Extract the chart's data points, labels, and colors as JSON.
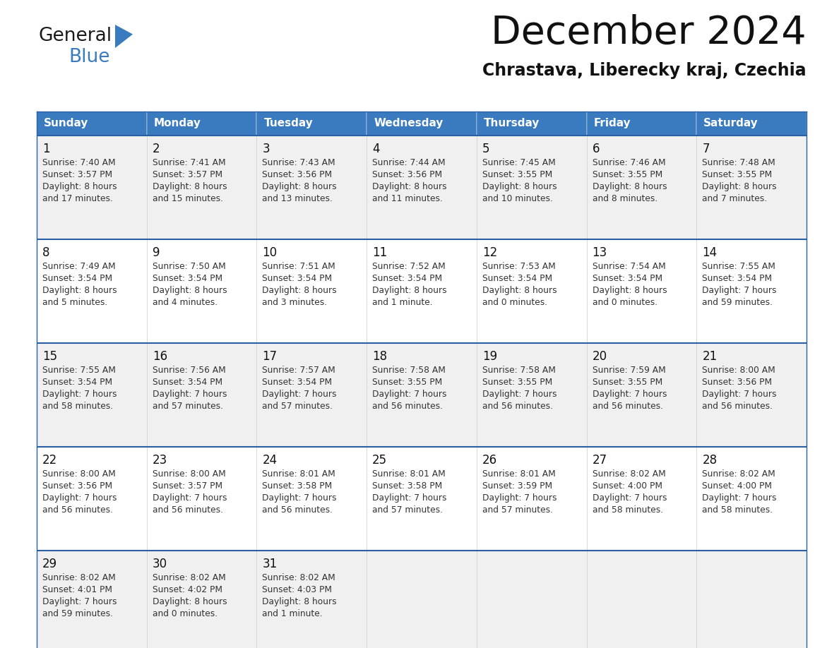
{
  "title": "December 2024",
  "subtitle": "Chrastava, Liberecky kraj, Czechia",
  "days_of_week": [
    "Sunday",
    "Monday",
    "Tuesday",
    "Wednesday",
    "Thursday",
    "Friday",
    "Saturday"
  ],
  "header_bg": "#3a7bbf",
  "header_text": "#ffffff",
  "cell_bg_even": "#f0f0f0",
  "cell_bg_odd": "#ffffff",
  "separator_color": "#2a5fa5",
  "text_color": "#333333",
  "day_num_color": "#111111",
  "calendar_data": [
    [
      {
        "day": 1,
        "sunrise": "7:40 AM",
        "sunset": "3:57 PM",
        "daylight_h": "8 hours",
        "daylight_m": "17 minutes"
      },
      {
        "day": 2,
        "sunrise": "7:41 AM",
        "sunset": "3:57 PM",
        "daylight_h": "8 hours",
        "daylight_m": "15 minutes"
      },
      {
        "day": 3,
        "sunrise": "7:43 AM",
        "sunset": "3:56 PM",
        "daylight_h": "8 hours",
        "daylight_m": "13 minutes"
      },
      {
        "day": 4,
        "sunrise": "7:44 AM",
        "sunset": "3:56 PM",
        "daylight_h": "8 hours",
        "daylight_m": "11 minutes"
      },
      {
        "day": 5,
        "sunrise": "7:45 AM",
        "sunset": "3:55 PM",
        "daylight_h": "8 hours",
        "daylight_m": "10 minutes"
      },
      {
        "day": 6,
        "sunrise": "7:46 AM",
        "sunset": "3:55 PM",
        "daylight_h": "8 hours",
        "daylight_m": "8 minutes"
      },
      {
        "day": 7,
        "sunrise": "7:48 AM",
        "sunset": "3:55 PM",
        "daylight_h": "8 hours",
        "daylight_m": "7 minutes"
      }
    ],
    [
      {
        "day": 8,
        "sunrise": "7:49 AM",
        "sunset": "3:54 PM",
        "daylight_h": "8 hours",
        "daylight_m": "5 minutes"
      },
      {
        "day": 9,
        "sunrise": "7:50 AM",
        "sunset": "3:54 PM",
        "daylight_h": "8 hours",
        "daylight_m": "4 minutes"
      },
      {
        "day": 10,
        "sunrise": "7:51 AM",
        "sunset": "3:54 PM",
        "daylight_h": "8 hours",
        "daylight_m": "3 minutes"
      },
      {
        "day": 11,
        "sunrise": "7:52 AM",
        "sunset": "3:54 PM",
        "daylight_h": "8 hours",
        "daylight_m": "1 minute"
      },
      {
        "day": 12,
        "sunrise": "7:53 AM",
        "sunset": "3:54 PM",
        "daylight_h": "8 hours",
        "daylight_m": "0 minutes"
      },
      {
        "day": 13,
        "sunrise": "7:54 AM",
        "sunset": "3:54 PM",
        "daylight_h": "8 hours",
        "daylight_m": "0 minutes"
      },
      {
        "day": 14,
        "sunrise": "7:55 AM",
        "sunset": "3:54 PM",
        "daylight_h": "7 hours",
        "daylight_m": "59 minutes"
      }
    ],
    [
      {
        "day": 15,
        "sunrise": "7:55 AM",
        "sunset": "3:54 PM",
        "daylight_h": "7 hours",
        "daylight_m": "58 minutes"
      },
      {
        "day": 16,
        "sunrise": "7:56 AM",
        "sunset": "3:54 PM",
        "daylight_h": "7 hours",
        "daylight_m": "57 minutes"
      },
      {
        "day": 17,
        "sunrise": "7:57 AM",
        "sunset": "3:54 PM",
        "daylight_h": "7 hours",
        "daylight_m": "57 minutes"
      },
      {
        "day": 18,
        "sunrise": "7:58 AM",
        "sunset": "3:55 PM",
        "daylight_h": "7 hours",
        "daylight_m": "56 minutes"
      },
      {
        "day": 19,
        "sunrise": "7:58 AM",
        "sunset": "3:55 PM",
        "daylight_h": "7 hours",
        "daylight_m": "56 minutes"
      },
      {
        "day": 20,
        "sunrise": "7:59 AM",
        "sunset": "3:55 PM",
        "daylight_h": "7 hours",
        "daylight_m": "56 minutes"
      },
      {
        "day": 21,
        "sunrise": "8:00 AM",
        "sunset": "3:56 PM",
        "daylight_h": "7 hours",
        "daylight_m": "56 minutes"
      }
    ],
    [
      {
        "day": 22,
        "sunrise": "8:00 AM",
        "sunset": "3:56 PM",
        "daylight_h": "7 hours",
        "daylight_m": "56 minutes"
      },
      {
        "day": 23,
        "sunrise": "8:00 AM",
        "sunset": "3:57 PM",
        "daylight_h": "7 hours",
        "daylight_m": "56 minutes"
      },
      {
        "day": 24,
        "sunrise": "8:01 AM",
        "sunset": "3:58 PM",
        "daylight_h": "7 hours",
        "daylight_m": "56 minutes"
      },
      {
        "day": 25,
        "sunrise": "8:01 AM",
        "sunset": "3:58 PM",
        "daylight_h": "7 hours",
        "daylight_m": "57 minutes"
      },
      {
        "day": 26,
        "sunrise": "8:01 AM",
        "sunset": "3:59 PM",
        "daylight_h": "7 hours",
        "daylight_m": "57 minutes"
      },
      {
        "day": 27,
        "sunrise": "8:02 AM",
        "sunset": "4:00 PM",
        "daylight_h": "7 hours",
        "daylight_m": "58 minutes"
      },
      {
        "day": 28,
        "sunrise": "8:02 AM",
        "sunset": "4:00 PM",
        "daylight_h": "7 hours",
        "daylight_m": "58 minutes"
      }
    ],
    [
      {
        "day": 29,
        "sunrise": "8:02 AM",
        "sunset": "4:01 PM",
        "daylight_h": "7 hours",
        "daylight_m": "59 minutes"
      },
      {
        "day": 30,
        "sunrise": "8:02 AM",
        "sunset": "4:02 PM",
        "daylight_h": "8 hours",
        "daylight_m": "0 minutes"
      },
      {
        "day": 31,
        "sunrise": "8:02 AM",
        "sunset": "4:03 PM",
        "daylight_h": "8 hours",
        "daylight_m": "1 minute"
      },
      null,
      null,
      null,
      null
    ]
  ]
}
